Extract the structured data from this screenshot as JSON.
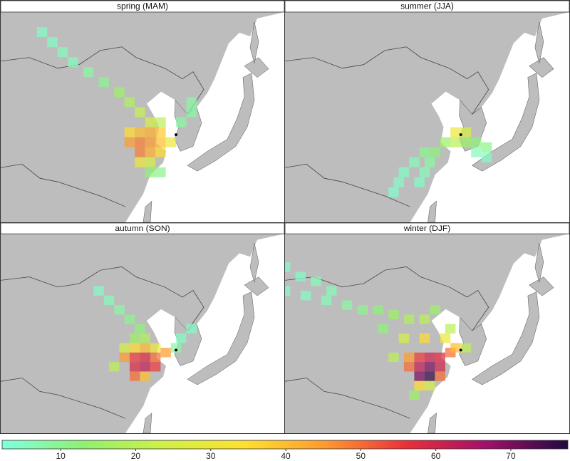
{
  "lonlim": [
    93,
    148
  ],
  "latlim": [
    20,
    62
  ],
  "site": {
    "lon": 127,
    "lat": 37.5
  },
  "colorbar": {
    "lim": [
      2.2,
      77.6
    ],
    "ticks": [
      10,
      20,
      30,
      40,
      50,
      60,
      70
    ],
    "colormap": [
      "#80ffe0",
      "#90f070",
      "#d0f048",
      "#ffe030",
      "#ff9a30",
      "#e8303a",
      "#a0106a",
      "#200a40"
    ]
  },
  "panels": [
    {
      "title": "spring (MAM)",
      "lon": [
        101,
        103,
        105,
        107,
        110,
        113,
        116,
        118,
        120,
        122,
        124,
        118,
        120,
        122,
        124,
        118,
        120,
        122,
        124,
        126,
        120,
        122,
        124,
        120,
        122,
        124,
        128,
        130,
        130,
        122
      ],
      "lat": [
        58,
        56,
        54,
        52,
        50,
        48,
        46,
        44,
        42,
        40,
        40,
        38,
        38,
        38,
        38,
        36,
        36,
        36,
        36,
        36,
        34,
        34,
        34,
        32,
        32,
        30,
        40,
        42,
        44,
        30
      ],
      "values": [
        5,
        5,
        6,
        6,
        8,
        10,
        15,
        18,
        22,
        25,
        20,
        35,
        40,
        42,
        38,
        45,
        48,
        45,
        40,
        30,
        48,
        42,
        35,
        30,
        25,
        10,
        8,
        8,
        8,
        12
      ]
    },
    {
      "title": "summer (JJA)",
      "lon": [
        126,
        128,
        126,
        128,
        124,
        130,
        132,
        122,
        120,
        118,
        116,
        115,
        114,
        121,
        120,
        119,
        130,
        132
      ],
      "lat": [
        38,
        38,
        36,
        36,
        36,
        36,
        35,
        34,
        34,
        32,
        30,
        28,
        26,
        32,
        30,
        28,
        34,
        33
      ],
      "values": [
        30,
        25,
        20,
        15,
        15,
        12,
        10,
        12,
        10,
        6,
        5,
        5,
        4,
        8,
        6,
        5,
        6,
        5
      ]
    },
    {
      "title": "autumn (SON)",
      "lon": [
        112,
        114,
        116,
        118,
        120,
        119,
        121,
        117,
        119,
        121,
        123,
        117,
        119,
        121,
        123,
        125,
        119,
        121,
        123,
        119,
        121,
        127,
        128,
        130,
        115
      ],
      "lat": [
        50,
        48,
        46,
        44,
        42,
        40,
        40,
        38,
        38,
        38,
        38,
        36,
        36,
        36,
        36,
        37,
        34,
        34,
        34,
        32,
        32,
        38,
        40,
        42,
        34
      ],
      "values": [
        5,
        6,
        8,
        10,
        12,
        15,
        18,
        25,
        35,
        40,
        30,
        45,
        55,
        58,
        50,
        45,
        58,
        62,
        55,
        50,
        40,
        8,
        5,
        5,
        20
      ]
    },
    {
      "title": "winter (DJF)",
      "lon": [
        93,
        96,
        99,
        102,
        93,
        97,
        101,
        105,
        108,
        111,
        114,
        117,
        120,
        122,
        125,
        112,
        116,
        120,
        124,
        114,
        117,
        119,
        121,
        123,
        125,
        117,
        119,
        121,
        123,
        119,
        121,
        123,
        119,
        121,
        118,
        126,
        128
      ],
      "lat": [
        55,
        53,
        52,
        50,
        50,
        49,
        48,
        47,
        46,
        46,
        45,
        44,
        44,
        46,
        42,
        42,
        40,
        40,
        40,
        36,
        36,
        36,
        36,
        36,
        37,
        34,
        34,
        34,
        34,
        32,
        32,
        32,
        30,
        30,
        28,
        38,
        38
      ],
      "values": [
        5,
        5,
        6,
        6,
        5,
        5,
        6,
        8,
        10,
        12,
        15,
        18,
        20,
        15,
        20,
        12,
        25,
        35,
        30,
        20,
        45,
        55,
        60,
        58,
        50,
        50,
        62,
        70,
        60,
        70,
        76,
        50,
        35,
        25,
        15,
        40,
        20
      ]
    }
  ]
}
